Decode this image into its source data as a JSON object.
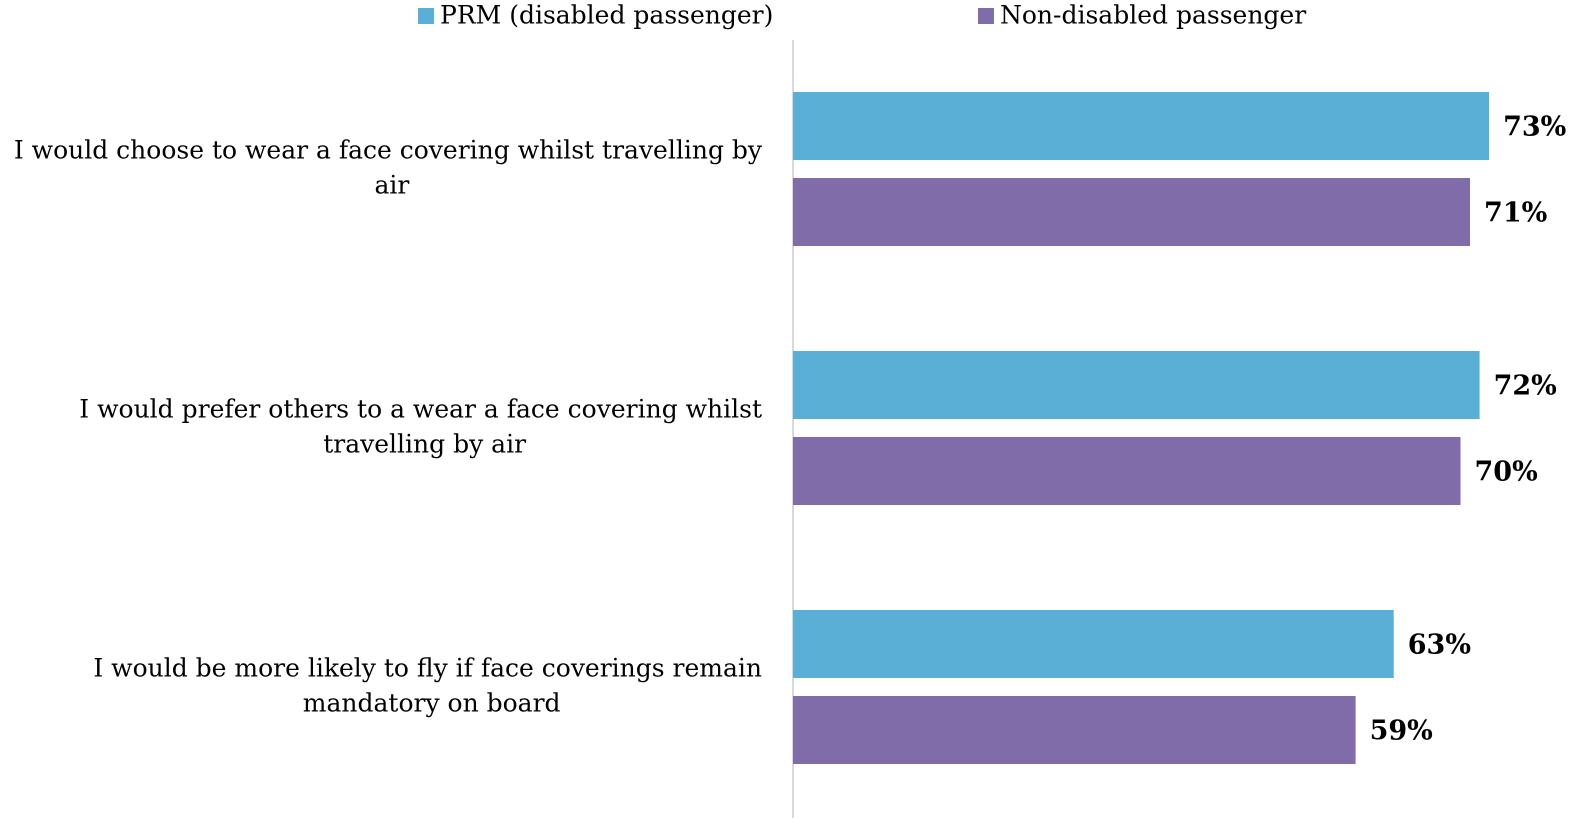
{
  "chart_data": {
    "type": "bar",
    "orientation": "horizontal",
    "categories": [
      "I would choose to wear a face covering whilst travelling by air",
      "I would prefer others to a wear a face covering whilst travelling by air",
      "I would be more likely to fly if face coverings remain mandatory on board"
    ],
    "series": [
      {
        "name": "PRM (disabled passenger)",
        "color": "#5aafd6",
        "values": [
          73,
          72,
          63
        ],
        "value_labels": [
          "73%",
          "72%",
          "63%"
        ]
      },
      {
        "name": "Non-disabled passenger",
        "color": "#806ca8",
        "values": [
          71,
          70,
          59
        ],
        "value_labels": [
          "71%",
          "70%",
          "59%"
        ]
      }
    ],
    "xlim": [
      0,
      84
    ]
  }
}
